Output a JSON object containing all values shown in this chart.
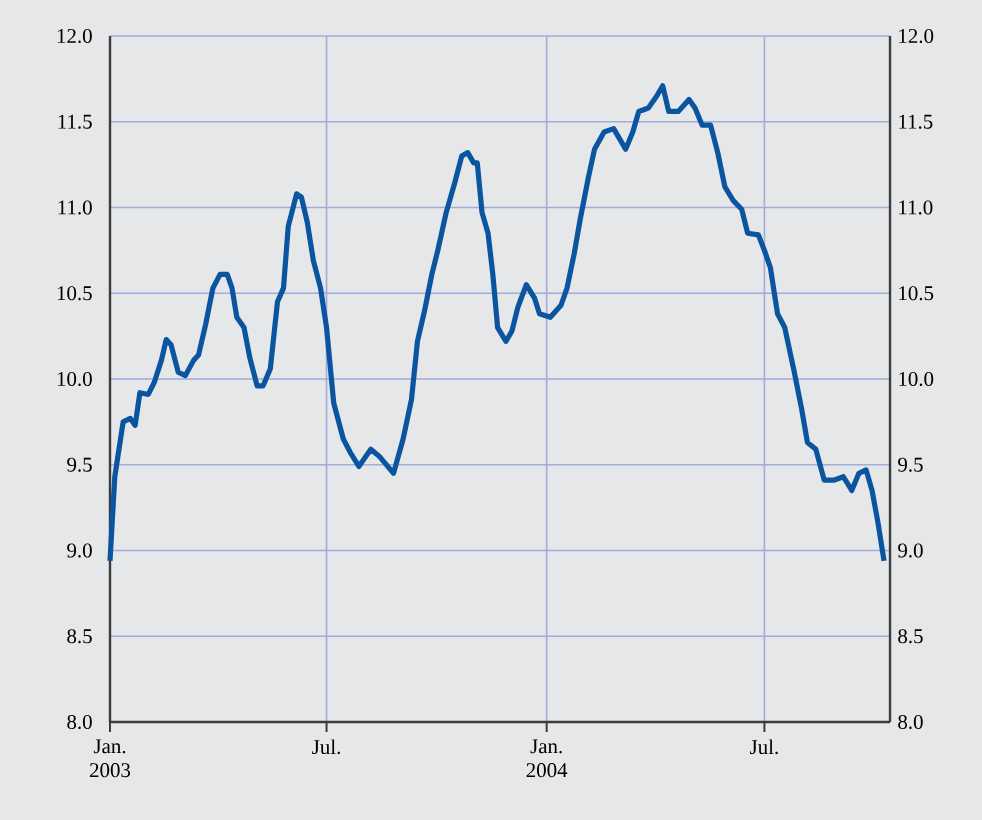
{
  "chart_data": {
    "type": "line",
    "grid": true,
    "xlim": [
      "2003-01-01",
      "2004-10-14"
    ],
    "xticks": [
      {
        "value": "2003-01-01",
        "label": "Jan. 2003"
      },
      {
        "value": "2003-07-01",
        "label": "Jul."
      },
      {
        "value": "2004-01-01",
        "label": "Jan. 2004"
      },
      {
        "value": "2004-07-01",
        "label": "Jul."
      }
    ],
    "ylim": [
      8,
      12
    ],
    "yticks": [
      {
        "value": 8,
        "label": "8.0"
      },
      {
        "value": 8.5,
        "label": "8.5"
      },
      {
        "value": 9,
        "label": "9.0"
      },
      {
        "value": 9.5,
        "label": "9.5"
      },
      {
        "value": 10,
        "label": "10.0"
      },
      {
        "value": 10.5,
        "label": "10.5"
      },
      {
        "value": 11,
        "label": "11.0"
      },
      {
        "value": 11.5,
        "label": "11.5"
      },
      {
        "value": 12,
        "label": "12.0"
      }
    ],
    "y2lim": [
      8,
      12
    ],
    "y2ticks": [
      {
        "value": 8,
        "label": "8.0"
      },
      {
        "value": 8.5,
        "label": "8.5"
      },
      {
        "value": 9,
        "label": "9.0"
      },
      {
        "value": 9.5,
        "label": "9.5"
      },
      {
        "value": 10,
        "label": "10.0"
      },
      {
        "value": 10.5,
        "label": "10.5"
      },
      {
        "value": 11,
        "label": "11.0"
      },
      {
        "value": 11.5,
        "label": "11.5"
      },
      {
        "value": 12,
        "label": "12.0"
      }
    ],
    "x": [
      "2003-01-01",
      "2003-01-05",
      "2003-01-12",
      "2003-01-18",
      "2003-01-22",
      "2003-01-26",
      "2003-02-02",
      "2003-02-07",
      "2003-02-13",
      "2003-02-17",
      "2003-02-21",
      "2003-02-27",
      "2003-03-05",
      "2003-03-12",
      "2003-03-16",
      "2003-03-22",
      "2003-03-28",
      "2003-04-03",
      "2003-04-09",
      "2003-04-13",
      "2003-04-17",
      "2003-04-23",
      "2003-04-28",
      "2003-05-04",
      "2003-05-09",
      "2003-05-15",
      "2003-05-21",
      "2003-05-26",
      "2003-05-30",
      "2003-06-06",
      "2003-06-10",
      "2003-06-15",
      "2003-06-20",
      "2003-06-26",
      "2003-07-01",
      "2003-07-07",
      "2003-07-15",
      "2003-07-21",
      "2003-07-28",
      "2003-08-07",
      "2003-08-14",
      "2003-08-26",
      "2003-09-03",
      "2003-09-10",
      "2003-09-15",
      "2003-09-21",
      "2003-09-27",
      "2003-10-02",
      "2003-10-09",
      "2003-10-16",
      "2003-10-22",
      "2003-10-27",
      "2003-11-01",
      "2003-11-04",
      "2003-11-08",
      "2003-11-13",
      "2003-11-17",
      "2003-11-21",
      "2003-11-28",
      "2003-12-03",
      "2003-12-08",
      "2003-12-15",
      "2003-12-22",
      "2003-12-26",
      "2004-01-04",
      "2004-01-13",
      "2004-01-18",
      "2004-01-24",
      "2004-01-29",
      "2004-02-05",
      "2004-02-10",
      "2004-02-18",
      "2004-02-26",
      "2004-03-02",
      "2004-03-07",
      "2004-03-13",
      "2004-03-18",
      "2004-03-26",
      "2004-04-02",
      "2004-04-07",
      "2004-04-12",
      "2004-04-20",
      "2004-04-29",
      "2004-05-04",
      "2004-05-10",
      "2004-05-17",
      "2004-05-23",
      "2004-05-29",
      "2004-06-05",
      "2004-06-12",
      "2004-06-17",
      "2004-06-26",
      "2004-07-01",
      "2004-07-06",
      "2004-07-12",
      "2004-07-18",
      "2004-07-26",
      "2004-08-01",
      "2004-08-06",
      "2004-08-13",
      "2004-08-20",
      "2004-08-28",
      "2004-09-05",
      "2004-09-12",
      "2004-09-18",
      "2004-09-24",
      "2004-09-29",
      "2004-10-04",
      "2004-10-09"
    ],
    "series": [
      {
        "color": "#0b55a0",
        "values": [
          8.94,
          9.43,
          9.75,
          9.77,
          9.73,
          9.92,
          9.91,
          9.98,
          10.11,
          10.23,
          10.2,
          10.04,
          10.02,
          10.11,
          10.14,
          10.32,
          10.53,
          10.61,
          10.61,
          10.53,
          10.36,
          10.3,
          10.12,
          9.96,
          9.96,
          10.06,
          10.45,
          10.53,
          10.89,
          11.08,
          11.06,
          10.91,
          10.69,
          10.53,
          10.3,
          9.86,
          9.65,
          9.57,
          9.49,
          9.59,
          9.55,
          9.45,
          9.65,
          9.88,
          10.22,
          10.4,
          10.61,
          10.75,
          10.97,
          11.14,
          11.3,
          11.32,
          11.26,
          11.26,
          10.97,
          10.85,
          10.61,
          10.3,
          10.22,
          10.28,
          10.42,
          10.55,
          10.47,
          10.38,
          10.36,
          10.43,
          10.53,
          10.73,
          10.93,
          11.18,
          11.34,
          11.44,
          11.46,
          11.4,
          11.34,
          11.44,
          11.56,
          11.58,
          11.65,
          11.71,
          11.56,
          11.56,
          11.63,
          11.58,
          11.48,
          11.48,
          11.32,
          11.12,
          11.04,
          10.99,
          10.85,
          10.84,
          10.75,
          10.65,
          10.38,
          10.3,
          10.04,
          9.83,
          9.63,
          9.59,
          9.41,
          9.41,
          9.43,
          9.35,
          9.45,
          9.47,
          9.35,
          9.16,
          8.94
        ]
      }
    ]
  }
}
